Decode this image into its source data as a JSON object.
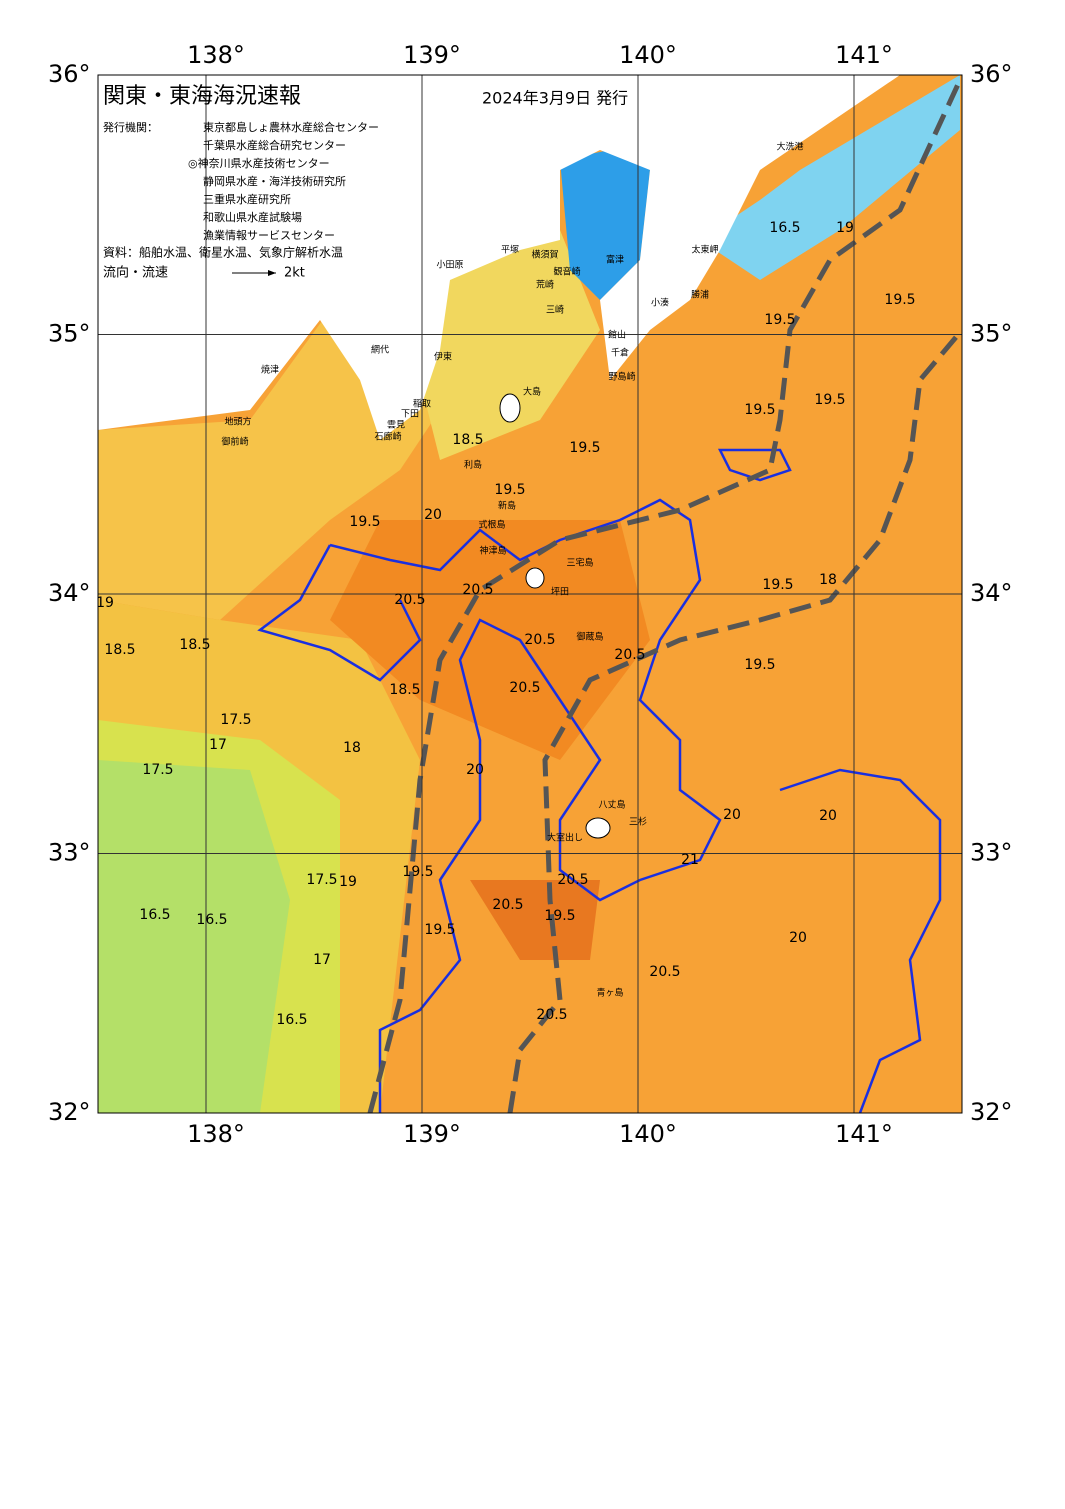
{
  "header": {
    "title": "関東・東海海況速報",
    "date": "2024年3月9日 発行",
    "issuer_label": "発行機関：",
    "issuers": [
      "東京都島しょ農林水産総合センター",
      "千葉県水産総合研究センター",
      "◎神奈川県水産技術センター",
      "静岡県水産・海洋技術研究所",
      "三重県水産研究所",
      "和歌山県水産試験場",
      "漁業情報サービスセンター"
    ],
    "source": "資料：船舶水温、衛星水温、気象庁解析水温",
    "flow_label": "流向・流速",
    "flow_scale": "2kt"
  },
  "map": {
    "lon_ticks": [
      {
        "value": 138,
        "label": "138°"
      },
      {
        "value": 139,
        "label": "139°"
      },
      {
        "value": 140,
        "label": "140°"
      },
      {
        "value": 141,
        "label": "141°"
      }
    ],
    "lat_ticks": [
      {
        "value": 32,
        "label": "32°"
      },
      {
        "value": 33,
        "label": "33°"
      },
      {
        "value": 34,
        "label": "34°"
      },
      {
        "value": 35,
        "label": "35°"
      },
      {
        "value": 36,
        "label": "36°"
      }
    ],
    "lonlim": [
      137.5,
      141.5
    ],
    "latlim": [
      32,
      36
    ],
    "places": [
      "大洗港",
      "太東岬",
      "勝浦",
      "小湊",
      "館山",
      "千倉",
      "野島崎",
      "富津",
      "横須賀",
      "観音崎",
      "荒崎",
      "三崎",
      "平塚",
      "小田原",
      "伊東",
      "網代",
      "稲取",
      "下田",
      "雲見",
      "石廊崎",
      "焼津",
      "地頭方",
      "御前崎",
      "大島",
      "利島",
      "新島",
      "式根島",
      "神津島",
      "三宅島",
      "坪田",
      "御蔵島",
      "八丈島",
      "三杉",
      "大室出し",
      "青ヶ島"
    ],
    "contour_labels": [
      "16.5",
      "19",
      "19.5",
      "19.5",
      "19.5",
      "19.5",
      "18.5",
      "19.5",
      "19.5",
      "20",
      "19.5",
      "19",
      "18.5",
      "18.5",
      "17.5",
      "17",
      "18",
      "17.5",
      "16.5",
      "16.5",
      "16.5",
      "17",
      "17.5",
      "18.5",
      "19.5",
      "20.5",
      "20.5",
      "20.5",
      "20.5",
      "20.5",
      "20.5",
      "20.5",
      "20.5",
      "20.5",
      "20",
      "20",
      "20",
      "20",
      "21",
      "19.5",
      "19.5",
      "19.5",
      "19.5",
      "18",
      "19"
    ]
  }
}
